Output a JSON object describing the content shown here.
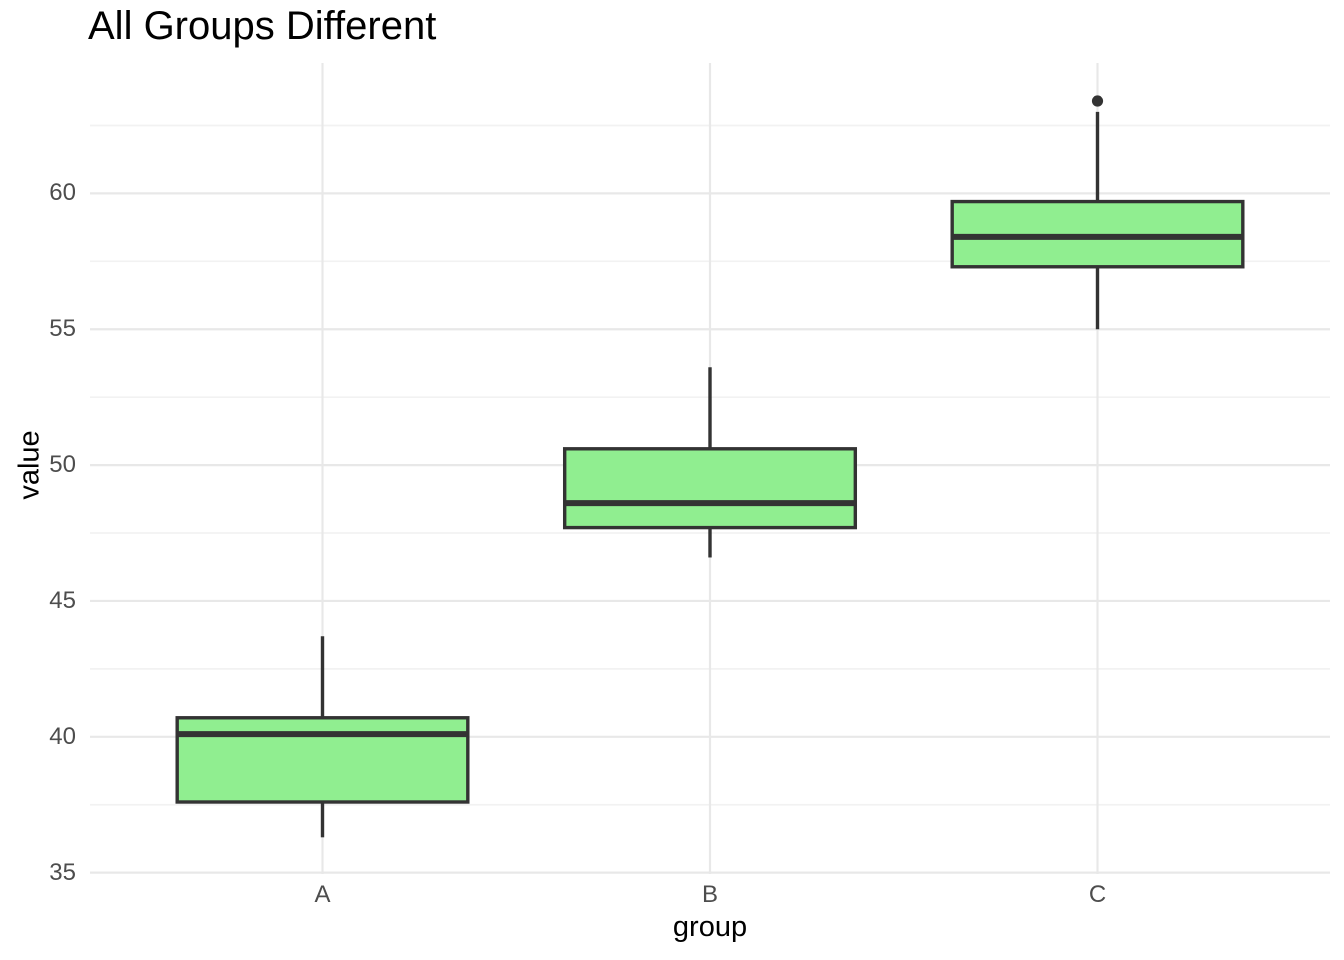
{
  "chart_data": {
    "type": "boxplot",
    "title": "All Groups Different",
    "xlabel": "group",
    "ylabel": "value",
    "categories": [
      "A",
      "B",
      "C"
    ],
    "ylim": [
      34.95,
      64.8
    ],
    "y_major_ticks": [
      35,
      40,
      45,
      50,
      55,
      60
    ],
    "y_minor_ticks": [
      37.5,
      42.5,
      47.5,
      52.5,
      57.5,
      62.5
    ],
    "grid": "horizontal major+minor gridlines; vertical major gridline at each category; no axis lines or tick marks",
    "legend": "none",
    "series": [
      {
        "category": "A",
        "whisker_low": 36.3,
        "q1": 37.6,
        "median": 40.1,
        "q3": 40.7,
        "whisker_high": 43.7,
        "outliers": []
      },
      {
        "category": "B",
        "whisker_low": 46.6,
        "q1": 47.7,
        "median": 48.6,
        "q3": 50.6,
        "whisker_high": 53.6,
        "outliers": []
      },
      {
        "category": "C",
        "whisker_low": 55.0,
        "q1": 57.3,
        "median": 58.4,
        "q3": 59.7,
        "whisker_high": 63.0,
        "outliers": [
          63.4
        ]
      }
    ],
    "colors": {
      "box_fill": "#90EE90",
      "box_border": "#333333",
      "median": "#333333",
      "outlier": "#333333",
      "grid_major": "#E8E8E8",
      "grid_minor": "#F2F2F2",
      "tick_text": "#4D4D4D",
      "title_text": "#000000",
      "axis_title_text": "#000000",
      "background": "#FFFFFF"
    }
  }
}
